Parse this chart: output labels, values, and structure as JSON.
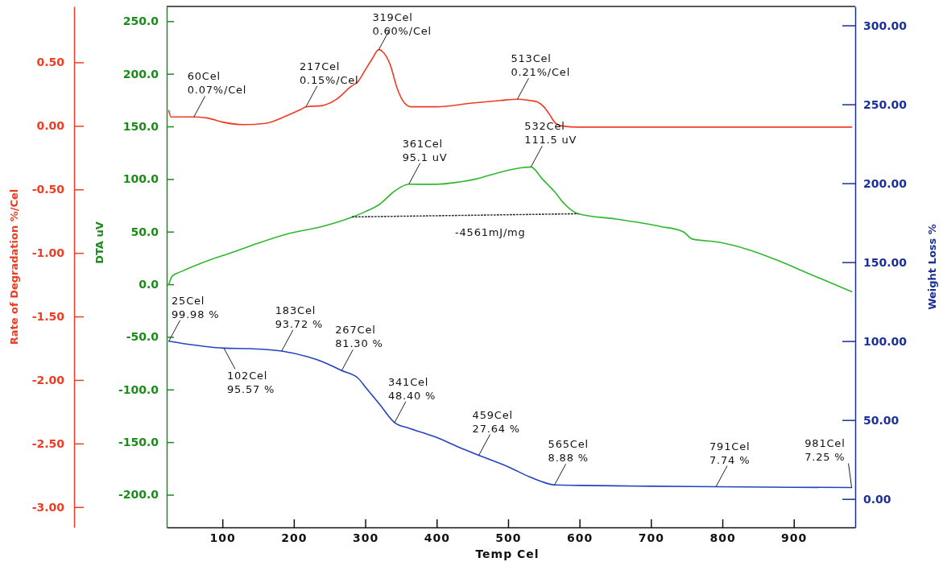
{
  "chart_data": {
    "type": "line",
    "xlabel": "Temp Cel",
    "ylabel": "Rate of Degradation %/Cel",
    "y2label": "Weight Loss %",
    "y3label": "DTA uV",
    "annotations": [
      "-4561mJ/mg"
    ],
    "xlim": [
      22,
      986
    ],
    "xticks": [
      100,
      200,
      300,
      400,
      500,
      600,
      700,
      800,
      900
    ],
    "ylim": [
      -3.16,
      0.94
    ],
    "yticks": [
      {
        "value": 0.5,
        "label": "0.50"
      },
      {
        "value": 0,
        "label": "0.00"
      },
      {
        "value": -0.5,
        "label": "-0.50"
      },
      {
        "value": -1,
        "label": "-1.00"
      },
      {
        "value": -1.5,
        "label": "-1.50"
      },
      {
        "value": -2,
        "label": "-2.00"
      },
      {
        "value": -2.5,
        "label": "-2.50"
      },
      {
        "value": -3,
        "label": "-3.00"
      }
    ],
    "y2lim": [
      -18,
      312
    ],
    "y2ticks": [
      {
        "value": 0,
        "label": "0.00"
      },
      {
        "value": 50,
        "label": "50.00"
      },
      {
        "value": 100,
        "label": "100.00"
      },
      {
        "value": 150,
        "label": "150.00"
      },
      {
        "value": 200,
        "label": "200.00"
      },
      {
        "value": 250,
        "label": "250.00"
      },
      {
        "value": 300,
        "label": "300.00"
      }
    ],
    "y3lim": [
      -231,
      264
    ],
    "y3ticks": [
      {
        "value": 250,
        "label": "250.0"
      },
      {
        "value": 200,
        "label": "200.0"
      },
      {
        "value": 150,
        "label": "150.0"
      },
      {
        "value": 100,
        "label": "100.0"
      },
      {
        "value": 50,
        "label": "50.0"
      },
      {
        "value": 0,
        "label": "0.0"
      },
      {
        "value": -50,
        "label": "-50.0"
      },
      {
        "value": -100,
        "label": "-100.0"
      },
      {
        "value": -150,
        "label": "-150.0"
      },
      {
        "value": -200,
        "label": "-200.0"
      }
    ],
    "series": [
      {
        "color": "#f03c22",
        "line_style": "solid",
        "x": [
          25,
          28,
          40,
          60,
          80,
          100,
          130,
          160,
          190,
          210,
          217,
          240,
          260,
          280,
          290,
          300,
          310,
          319,
          325,
          335,
          345,
          355,
          365,
          400,
          450,
          490,
          513,
          530,
          540,
          550,
          558,
          565,
          575,
          600,
          700,
          800,
          900,
          981
        ],
        "values": [
          0.12,
          0.07,
          0.07,
          0.07,
          0.06,
          0.03,
          0.01,
          0.02,
          0.08,
          0.13,
          0.15,
          0.16,
          0.21,
          0.31,
          0.35,
          0.44,
          0.53,
          0.6,
          0.58,
          0.48,
          0.29,
          0.18,
          0.15,
          0.15,
          0.18,
          0.2,
          0.21,
          0.2,
          0.19,
          0.15,
          0.09,
          0.03,
          0.0,
          -0.01,
          -0.01,
          -0.01,
          -0.01,
          -0.01
        ],
        "value_labels": [
          null,
          null,
          null,
          "60Cel\n0.07%/Cel",
          null,
          null,
          null,
          null,
          null,
          null,
          "217Cel\n0.15%/Cel",
          null,
          null,
          null,
          null,
          null,
          null,
          "319Cel\n0.60%/Cel",
          null,
          null,
          null,
          null,
          null,
          null,
          null,
          null,
          "513Cel\n0.21%/Cel",
          null,
          null,
          null,
          null,
          null,
          null,
          null,
          null,
          null,
          null,
          null
        ]
      },
      {
        "color": "#2eb82e",
        "line_style": "solid",
        "axis": "y3",
        "x": [
          25,
          30,
          42,
          70,
          117,
          150,
          192,
          240,
          282,
          300,
          320,
          342,
          361,
          380,
          399,
          430,
          455,
          492,
          522,
          532,
          548,
          565,
          578,
          598,
          651,
          713,
          745,
          758,
          795,
          836,
          880,
          918,
          981
        ],
        "values": [
          0,
          8,
          12,
          20,
          31,
          39,
          48,
          55,
          64,
          69,
          76,
          89,
          95.1,
          95,
          95,
          97,
          100,
          107,
          111,
          111.5,
          100,
          88,
          77,
          67,
          62,
          55,
          50,
          43,
          40,
          33,
          22,
          11,
          -7
        ],
        "value_labels": [
          null,
          null,
          null,
          null,
          null,
          null,
          null,
          null,
          null,
          null,
          null,
          null,
          "361Cel\n95.1 uV",
          null,
          null,
          null,
          null,
          null,
          null,
          "532Cel\n111.5 uV",
          null,
          null,
          null,
          null,
          null,
          null,
          null,
          null,
          null,
          null,
          null,
          null,
          null
        ]
      },
      {
        "color": "#333333",
        "line_style": "dotted",
        "axis": "y3",
        "x": [
          282,
          598
        ],
        "values": [
          64,
          67
        ]
      },
      {
        "color": "#2442c2",
        "line_style": "solid",
        "axis": "y2",
        "x": [
          25,
          60,
          102,
          140,
          183,
          220,
          240,
          267,
          290,
          300,
          320,
          341,
          360,
          380,
          400,
          430,
          459,
          500,
          530,
          550,
          565,
          600,
          700,
          791,
          900,
          981
        ],
        "values": [
          99.98,
          97.5,
          95.57,
          95.2,
          93.72,
          90,
          87,
          81.3,
          76.5,
          71,
          60,
          48.4,
          45,
          42,
          39,
          33,
          27.64,
          20.4,
          14,
          10.5,
          8.88,
          8.6,
          8.1,
          7.74,
          7.4,
          7.25
        ],
        "value_labels": [
          "25Cel\n99.98 %",
          null,
          "102Cel\n95.57 %",
          null,
          "183Cel\n93.72 %",
          null,
          null,
          "267Cel\n81.30 %",
          null,
          null,
          null,
          "341Cel\n48.40 %",
          null,
          null,
          null,
          null,
          "459Cel\n27.64 %",
          null,
          null,
          null,
          "565Cel\n8.88 %",
          null,
          null,
          "791Cel\n7.74 %",
          null,
          "981Cel\n7.25 %"
        ]
      }
    ]
  }
}
